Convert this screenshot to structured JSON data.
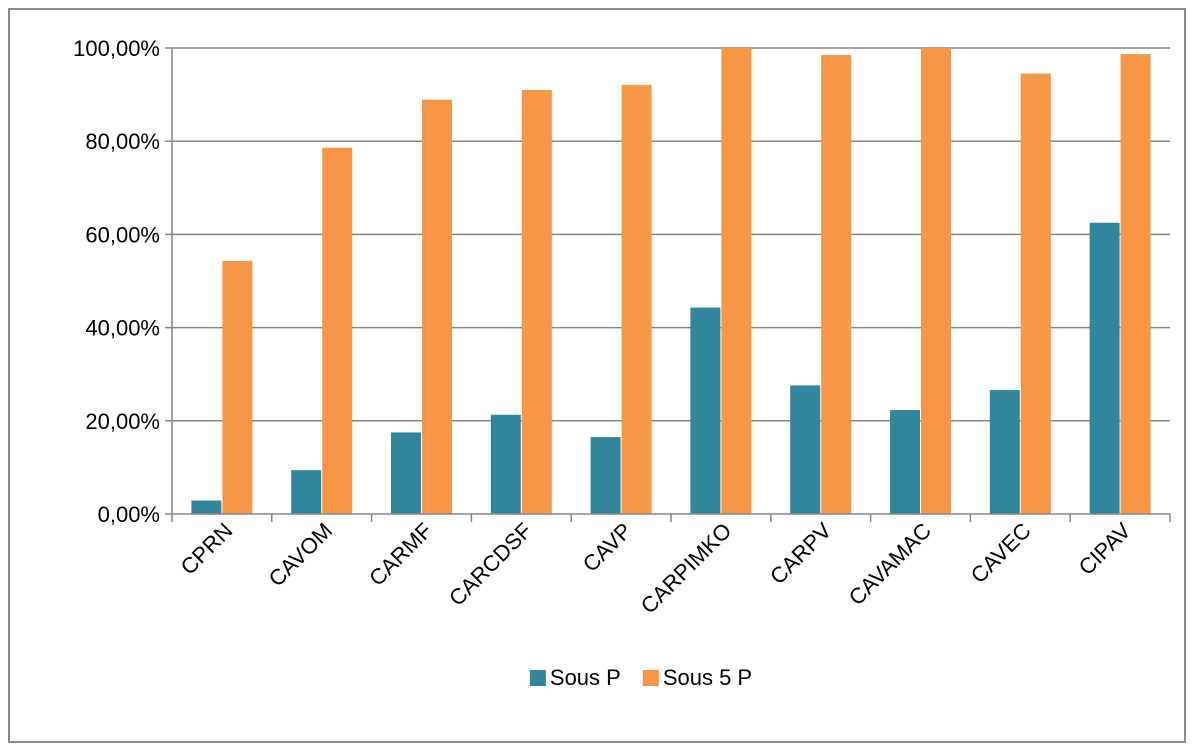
{
  "chart_data": {
    "type": "bar",
    "title": "",
    "xlabel": "",
    "ylabel": "",
    "ylim": [
      0,
      100
    ],
    "yticks": [
      0,
      20,
      40,
      60,
      80,
      100
    ],
    "ytick_labels": [
      "0,00%",
      "20,00%",
      "40,00%",
      "60,00%",
      "80,00%",
      "100,00%"
    ],
    "grid": true,
    "legend_position": "bottom",
    "categories": [
      "CPRN",
      "CAVOM",
      "CARMF",
      "CARCDSF",
      "CAVP",
      "CARPIMKO",
      "CARPV",
      "CAVAMAC",
      "CAVEC",
      "CIPAV"
    ],
    "series": [
      {
        "name": "Sous P",
        "color": "#31859c",
        "values": [
          2.9,
          9.4,
          17.5,
          21.3,
          16.5,
          44.3,
          27.6,
          22.3,
          26.6,
          62.5
        ]
      },
      {
        "name": "Sous 5 P",
        "color": "#f79646",
        "values": [
          54.3,
          78.6,
          88.9,
          91.0,
          92.1,
          100.0,
          98.5,
          100.0,
          94.5,
          98.7
        ]
      }
    ]
  }
}
